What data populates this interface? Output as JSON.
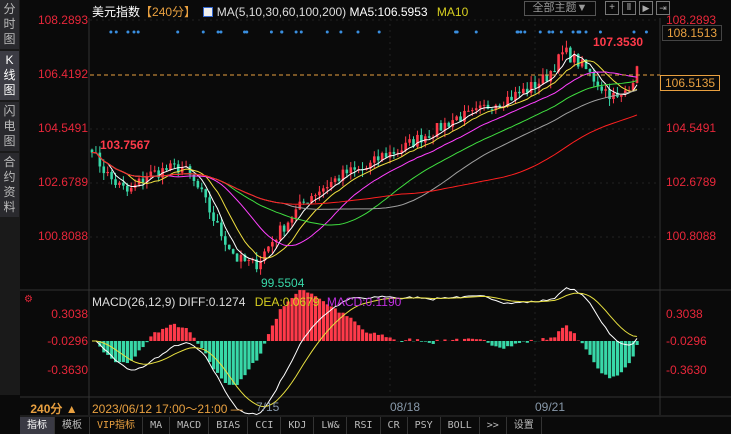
{
  "sidebar": {
    "items": [
      {
        "label": "分时图"
      },
      {
        "label": "K线图",
        "active": true
      },
      {
        "label": "闪电图"
      },
      {
        "label": "合约资料"
      }
    ]
  },
  "header": {
    "title": "美元指数",
    "period": "【240分】",
    "ma_label": "MA(5,10,30,60,100,200)",
    "ma5": "MA5:106.5953",
    "ma10": "MA10",
    "theme_button": "全部主题▼"
  },
  "price_axis": {
    "labels": [
      "108.2893",
      "106.4192",
      "104.5491",
      "102.6789",
      "100.8088"
    ],
    "max": 108.2893,
    "min": 99.3
  },
  "annotations": {
    "high": "107.3530",
    "low": "99.5504",
    "start": "103.7567"
  },
  "price_boxes": {
    "upper": "108.1513",
    "current": "106.5135"
  },
  "macd": {
    "title": "MACD(26,12,9)",
    "diff": "DIFF:0.1274",
    "dea": "DEA:0.0679",
    "macd": "MACD:0.1190",
    "axis": [
      "0.3038",
      "-0.0296",
      "-0.3630"
    ]
  },
  "time_axis": {
    "period_button": "240分 ▲",
    "range": "2023/06/12 17:00～21:00 —",
    "dates": [
      "7/15",
      "08/18",
      "09/21"
    ]
  },
  "bottom_tabs": [
    "指标",
    "模板",
    "VIP指标",
    "MA",
    "MACD",
    "BIAS",
    "CCI",
    "KDJ",
    "LW&",
    "RSI",
    "CR",
    "PSY",
    "BOLL",
    ">>",
    "设置"
  ],
  "colors": {
    "up": "#ff3a4a",
    "down": "#38d8a8",
    "ma5": "#ffffff",
    "ma10": "#f0e040",
    "ma30": "#ff40ff",
    "ma60": "#40e040",
    "ma100": "#a0a0a0",
    "ma200": "#ff2020"
  },
  "close_path": [
    103.7,
    102.8,
    102.3,
    102.9,
    103.1,
    103.2,
    102.3,
    101.0,
    100.0,
    99.8,
    100.7,
    101.5,
    102.2,
    102.6,
    103.0,
    103.1,
    103.6,
    103.8,
    104.2,
    104.5,
    104.9,
    105.0,
    105.4,
    105.6,
    105.9,
    106.3,
    107.2,
    106.7,
    106.0,
    105.5,
    106.5
  ]
}
